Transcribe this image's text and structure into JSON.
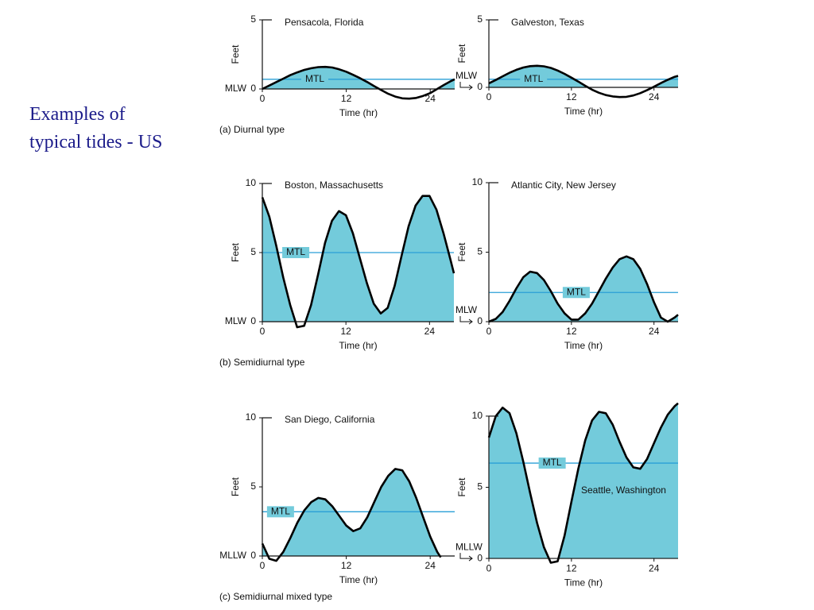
{
  "slide_title": [
    "Examples of",
    "typical tides - US"
  ],
  "chart_data": [
    {
      "type": "area",
      "title": "Pensacola, Florida",
      "xlabel": "Time (hr)",
      "ylabel": "Feet",
      "datum_label": "MLW",
      "caption": "(a) Diurnal type",
      "x": [
        0,
        1,
        2,
        3,
        4,
        5,
        6,
        7,
        8,
        9,
        10,
        11,
        12,
        13,
        14,
        15,
        16,
        17,
        18,
        19,
        20,
        21,
        22,
        23,
        24,
        25,
        26,
        27,
        27.5
      ],
      "values": [
        0.0,
        0.25,
        0.5,
        0.75,
        1.0,
        1.2,
        1.38,
        1.5,
        1.58,
        1.6,
        1.55,
        1.42,
        1.25,
        1.02,
        0.77,
        0.5,
        0.2,
        -0.08,
        -0.35,
        -0.55,
        -0.68,
        -0.7,
        -0.65,
        -0.5,
        -0.3,
        0.0,
        0.3,
        0.58,
        0.7
      ],
      "color": "#000000",
      "fill": "#73cbdb",
      "reference_line": {
        "label": "MTL",
        "value": 0.7,
        "color": "#2a9fd6"
      },
      "xlim": [
        0,
        27.5
      ],
      "ylim": [
        -1,
        5
      ],
      "xticks": [
        0,
        12,
        24
      ],
      "yticks": [
        0,
        5
      ]
    },
    {
      "type": "area",
      "title": "Galveston, Texas",
      "xlabel": "Time (hr)",
      "ylabel": "Feet",
      "datum_label": "MLW",
      "x": [
        0,
        1,
        2,
        3,
        4,
        5,
        6,
        7,
        8,
        9,
        10,
        11,
        12,
        13,
        14,
        15,
        16,
        17,
        18,
        19,
        20,
        21,
        22,
        23,
        24,
        25,
        26,
        27,
        27.5
      ],
      "values": [
        0.3,
        0.55,
        0.82,
        1.08,
        1.3,
        1.47,
        1.57,
        1.6,
        1.56,
        1.44,
        1.25,
        1.0,
        0.72,
        0.43,
        0.12,
        -0.17,
        -0.4,
        -0.57,
        -0.67,
        -0.72,
        -0.7,
        -0.6,
        -0.43,
        -0.2,
        0.05,
        0.32,
        0.56,
        0.78,
        0.85
      ],
      "color": "#000000",
      "fill": "#73cbdb",
      "reference_line": {
        "label": "MTL",
        "value": 0.6,
        "color": "#2a9fd6"
      },
      "xlim": [
        0,
        27.5
      ],
      "ylim": [
        -1,
        5
      ],
      "xticks": [
        0,
        12,
        24
      ],
      "yticks": [
        0,
        5
      ]
    },
    {
      "type": "area",
      "title": "Boston, Massachusetts",
      "xlabel": "Time (hr)",
      "ylabel": "Feet",
      "datum_label": "MLW",
      "caption": "(b) Semidiurnal type",
      "x": [
        0,
        1,
        2,
        3,
        4,
        5,
        6,
        7,
        8,
        9,
        10,
        11,
        12,
        13,
        14,
        15,
        16,
        17,
        18,
        19,
        20,
        21,
        22,
        23,
        24,
        25,
        26,
        27,
        27.5
      ],
      "values": [
        9.0,
        7.6,
        5.5,
        3.2,
        1.2,
        -0.4,
        -0.3,
        1.2,
        3.4,
        5.7,
        7.3,
        8.0,
        7.7,
        6.4,
        4.6,
        2.8,
        1.3,
        0.6,
        1.0,
        2.6,
        4.8,
        6.9,
        8.4,
        9.1,
        9.1,
        8.1,
        6.4,
        4.5,
        3.5
      ],
      "color": "#000000",
      "fill": "#73cbdb",
      "reference_line": {
        "label": "MTL",
        "value": 5,
        "color": "#2a9fd6"
      },
      "xlim": [
        0,
        27.5
      ],
      "ylim": [
        -1,
        10
      ],
      "xticks": [
        0,
        12,
        24
      ],
      "yticks": [
        0,
        5,
        10
      ]
    },
    {
      "type": "area",
      "title": "Atlantic City, New Jersey",
      "xlabel": "Time (hr)",
      "ylabel": "Feet",
      "datum_label": "MLW",
      "x": [
        0,
        1,
        2,
        3,
        4,
        5,
        6,
        7,
        8,
        9,
        10,
        11,
        12,
        13,
        14,
        15,
        16,
        17,
        18,
        19,
        20,
        21,
        22,
        23,
        24,
        25,
        26,
        27,
        27.5
      ],
      "values": [
        0.0,
        0.2,
        0.7,
        1.5,
        2.4,
        3.2,
        3.6,
        3.5,
        3.0,
        2.2,
        1.3,
        0.6,
        0.15,
        0.15,
        0.6,
        1.3,
        2.2,
        3.1,
        3.9,
        4.5,
        4.7,
        4.5,
        3.8,
        2.7,
        1.4,
        0.3,
        0.0,
        0.3,
        0.5
      ],
      "color": "#000000",
      "fill": "#73cbdb",
      "reference_line": {
        "label": "MTL",
        "value": 2.1,
        "color": "#2a9fd6"
      },
      "xlim": [
        0,
        27.5
      ],
      "ylim": [
        -1,
        10
      ],
      "xticks": [
        0,
        12,
        24
      ],
      "yticks": [
        0,
        5,
        10
      ]
    },
    {
      "type": "area",
      "title": "San Diego, California",
      "xlabel": "Time (hr)",
      "ylabel": "Feet",
      "datum_label": "MLLW",
      "caption": "(c) Semidiurnal mixed type",
      "x": [
        0,
        1,
        2,
        3,
        4,
        5,
        6,
        7,
        8,
        9,
        10,
        11,
        12,
        13,
        14,
        15,
        16,
        17,
        18,
        19,
        20,
        21,
        22,
        23,
        24,
        25,
        25.5
      ],
      "values": [
        0.9,
        -0.2,
        -0.35,
        0.3,
        1.3,
        2.4,
        3.3,
        3.9,
        4.2,
        4.1,
        3.6,
        2.9,
        2.2,
        1.8,
        2.0,
        2.8,
        3.9,
        5.0,
        5.8,
        6.3,
        6.2,
        5.4,
        4.2,
        2.8,
        1.4,
        0.3,
        -0.1
      ],
      "color": "#000000",
      "fill": "#73cbdb",
      "reference_line": {
        "label": "MTL",
        "value": 3.2,
        "color": "#2a9fd6"
      },
      "xlim": [
        0,
        27.5
      ],
      "ylim": [
        -1,
        10
      ],
      "xticks": [
        0,
        12,
        24
      ],
      "yticks": [
        0,
        5,
        10
      ]
    },
    {
      "type": "area",
      "title": "Seattle, Washington",
      "xlabel": "Time (hr)",
      "ylabel": "Feet",
      "datum_label": "MLLW",
      "x": [
        0,
        1,
        2,
        3,
        4,
        5,
        6,
        7,
        8,
        9,
        10,
        11,
        12,
        13,
        14,
        15,
        16,
        17,
        18,
        19,
        20,
        21,
        22,
        23,
        24,
        25,
        26,
        27,
        27.5
      ],
      "values": [
        8.5,
        10.0,
        10.6,
        10.2,
        8.8,
        6.8,
        4.6,
        2.5,
        0.8,
        -0.3,
        -0.2,
        1.6,
        4.0,
        6.3,
        8.3,
        9.7,
        10.3,
        10.2,
        9.4,
        8.2,
        7.1,
        6.4,
        6.3,
        7.0,
        8.1,
        9.2,
        10.1,
        10.7,
        10.9
      ],
      "color": "#000000",
      "fill": "#73cbdb",
      "reference_line": {
        "label": "MTL",
        "value": 6.7,
        "color": "#2a9fd6"
      },
      "xlim": [
        0,
        27.5
      ],
      "ylim": [
        -1,
        11
      ],
      "xticks": [
        0,
        12,
        24
      ],
      "yticks": [
        0,
        5,
        10
      ]
    }
  ]
}
